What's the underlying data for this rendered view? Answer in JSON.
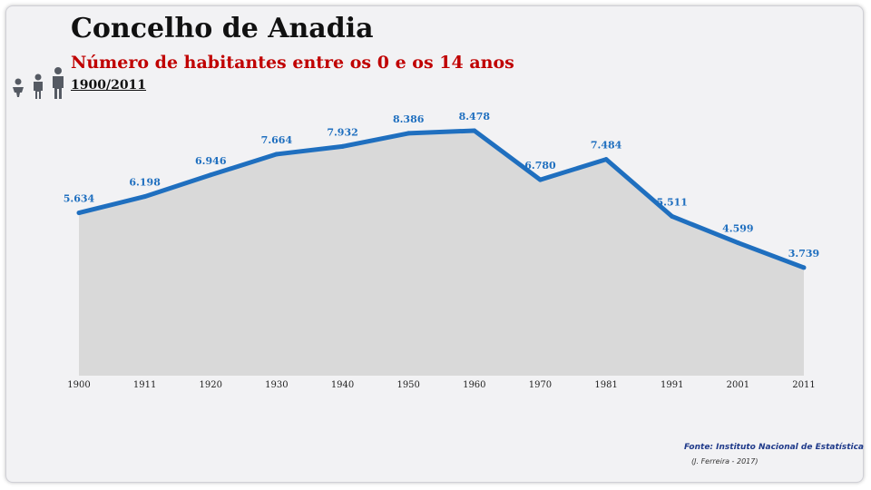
{
  "title": "Concelho de Anadia",
  "subtitle": "Número de habitantes entre os 0 e os 14 anos",
  "period": "1900/2011",
  "icons": [
    "baby-icon",
    "child-icon",
    "adult-icon"
  ],
  "source": "Fonte: Instituto Nacional de Estatística",
  "author": "(J. Ferreira - 2017)",
  "colors": {
    "line": "#1f6fbf",
    "area": "#d9d9d9",
    "title": "#111111",
    "subtitle": "#c00000",
    "source": "#1f3a8a"
  },
  "chart_data": {
    "type": "area",
    "title": "Número de habitantes entre os 0 e os 14 anos",
    "categories": [
      "1900",
      "1911",
      "1920",
      "1930",
      "1940",
      "1950",
      "1960",
      "1970",
      "1981",
      "1991",
      "2001",
      "2011"
    ],
    "values": [
      5634,
      6198,
      6946,
      7664,
      7932,
      8386,
      8478,
      6780,
      7484,
      5511,
      4599,
      3739
    ],
    "labels": [
      "5.634",
      "6.198",
      "6.946",
      "7.664",
      "7.932",
      "8.386",
      "8.478",
      "6.780",
      "7.484",
      "5.511",
      "4.599",
      "3.739"
    ],
    "ylim": [
      0,
      9000
    ],
    "grid": false,
    "legend": "none"
  }
}
